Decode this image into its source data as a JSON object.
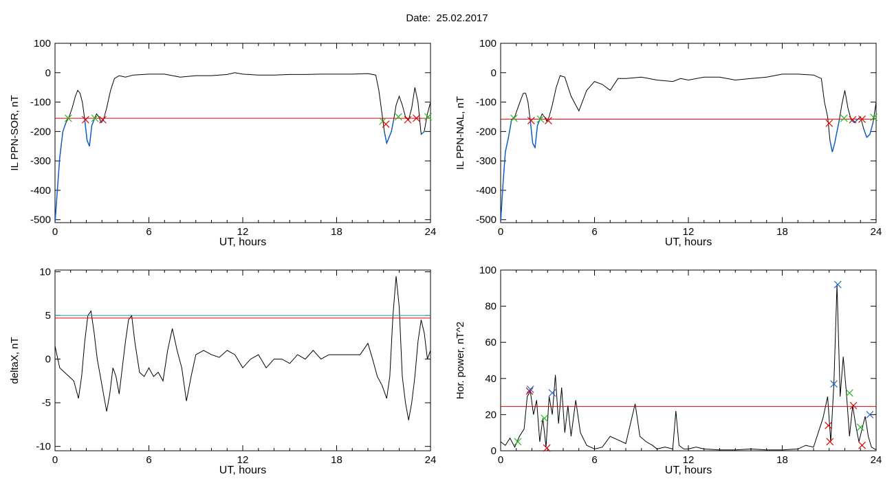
{
  "title": "Date:  25.02.2017",
  "colors": {
    "trace": "#000000",
    "threshold": "#e00000",
    "threshold2": "#2a8fc0",
    "segment": "#1060c8",
    "mark_red": "#e00000",
    "mark_green": "#22bb22",
    "mark_blue": "#2266cc"
  },
  "chart_data": [
    {
      "id": "ppn-sor",
      "type": "line",
      "xlabel": "UT, hours",
      "ylabel": "IL PPN-SOR, nT",
      "xlim": [
        0,
        24
      ],
      "ylim": [
        -510,
        100
      ],
      "xticks": [
        0,
        6,
        12,
        18,
        24
      ],
      "yticks": [
        -500,
        -400,
        -300,
        -200,
        -100,
        0,
        100
      ],
      "threshold": -155,
      "x": [
        0,
        0.15,
        0.3,
        0.5,
        0.7,
        0.9,
        1.1,
        1.3,
        1.45,
        1.6,
        1.75,
        1.9,
        2.05,
        2.2,
        2.35,
        2.5,
        2.65,
        2.8,
        2.95,
        3.1,
        3.3,
        3.55,
        3.8,
        4.1,
        4.5,
        5,
        6,
        7,
        8,
        9,
        10,
        11,
        11.5,
        12,
        13,
        14,
        15,
        16,
        17,
        18,
        19,
        20,
        20.5,
        20.7,
        20.9,
        21.05,
        21.2,
        21.35,
        21.5,
        21.65,
        21.8,
        22.0,
        22.2,
        22.4,
        22.6,
        22.8,
        23.0,
        23.2,
        23.4,
        23.6,
        23.8,
        24
      ],
      "y": [
        -510,
        -400,
        -290,
        -200,
        -170,
        -150,
        -120,
        -80,
        -60,
        -70,
        -100,
        -160,
        -230,
        -250,
        -180,
        -160,
        -140,
        -150,
        -170,
        -160,
        -120,
        -60,
        -20,
        -10,
        -15,
        -8,
        -5,
        -5,
        -15,
        -10,
        -10,
        -6,
        0,
        -5,
        -8,
        -8,
        -6,
        -6,
        -5,
        -5,
        -5,
        -3,
        -8,
        -60,
        -140,
        -200,
        -240,
        -220,
        -200,
        -160,
        -110,
        -80,
        -110,
        -150,
        -160,
        -120,
        -50,
        -100,
        -210,
        -200,
        -140,
        -100
      ],
      "markers": [
        {
          "x": 0.85,
          "y": -155,
          "color": "mark_green"
        },
        {
          "x": 1.95,
          "y": -160,
          "color": "mark_red"
        },
        {
          "x": 2.55,
          "y": -155,
          "color": "mark_green"
        },
        {
          "x": 3.05,
          "y": -160,
          "color": "mark_red"
        },
        {
          "x": 20.95,
          "y": -165,
          "color": "mark_green"
        },
        {
          "x": 21.15,
          "y": -175,
          "color": "mark_red"
        },
        {
          "x": 21.95,
          "y": -150,
          "color": "mark_green"
        },
        {
          "x": 22.55,
          "y": -160,
          "color": "mark_red"
        },
        {
          "x": 23.1,
          "y": -155,
          "color": "mark_red"
        },
        {
          "x": 23.85,
          "y": -150,
          "color": "mark_green"
        }
      ]
    },
    {
      "id": "ppn-nal",
      "type": "line",
      "xlabel": "UT, hours",
      "ylabel": "IL PPN-NAL, nT",
      "xlim": [
        0,
        24
      ],
      "ylim": [
        -510,
        100
      ],
      "xticks": [
        0,
        6,
        12,
        18,
        24
      ],
      "yticks": [
        -500,
        -400,
        -300,
        -200,
        -100,
        0,
        100
      ],
      "threshold": -158,
      "x": [
        0,
        0.15,
        0.3,
        0.5,
        0.7,
        0.9,
        1.1,
        1.3,
        1.45,
        1.6,
        1.75,
        1.9,
        2.05,
        2.2,
        2.35,
        2.5,
        2.65,
        2.8,
        2.95,
        3.1,
        3.3,
        3.55,
        3.8,
        4.1,
        4.5,
        5,
        5.5,
        6,
        6.5,
        7,
        7.5,
        8,
        9,
        10,
        11,
        11.5,
        12,
        13,
        14,
        15,
        16,
        17,
        18,
        19,
        20,
        20.5,
        20.7,
        20.9,
        21.05,
        21.2,
        21.35,
        21.5,
        21.65,
        21.8,
        22.0,
        22.2,
        22.4,
        22.6,
        22.8,
        23.0,
        23.2,
        23.4,
        23.6,
        23.8,
        24
      ],
      "y": [
        -510,
        -380,
        -270,
        -220,
        -160,
        -150,
        -120,
        -90,
        -70,
        -70,
        -100,
        -165,
        -240,
        -255,
        -180,
        -160,
        -140,
        -150,
        -165,
        -150,
        -110,
        -50,
        -10,
        -15,
        -80,
        -130,
        -60,
        -30,
        -40,
        -60,
        -20,
        -20,
        -15,
        -25,
        -30,
        -20,
        -25,
        -15,
        -15,
        -25,
        -20,
        -15,
        -5,
        -5,
        -8,
        -20,
        -100,
        -150,
        -230,
        -270,
        -240,
        -200,
        -160,
        -110,
        -60,
        -120,
        -160,
        -170,
        -160,
        -150,
        -190,
        -220,
        -210,
        -170,
        -100
      ],
      "markers": [
        {
          "x": 0.85,
          "y": -155,
          "color": "mark_green"
        },
        {
          "x": 1.95,
          "y": -163,
          "color": "mark_red"
        },
        {
          "x": 2.55,
          "y": -158,
          "color": "mark_green"
        },
        {
          "x": 3.05,
          "y": -163,
          "color": "mark_red"
        },
        {
          "x": 21.0,
          "y": -172,
          "color": "mark_red"
        },
        {
          "x": 21.95,
          "y": -155,
          "color": "mark_green"
        },
        {
          "x": 22.5,
          "y": -160,
          "color": "mark_red"
        },
        {
          "x": 23.1,
          "y": -158,
          "color": "mark_red"
        },
        {
          "x": 23.85,
          "y": -152,
          "color": "mark_green"
        }
      ]
    },
    {
      "id": "deltax",
      "type": "line",
      "xlabel": "UT, hours",
      "ylabel": "deltaX, nT",
      "xlim": [
        0,
        24
      ],
      "ylim": [
        -10.5,
        10.2
      ],
      "xticks": [
        0,
        6,
        12,
        18,
        24
      ],
      "yticks": [
        -10,
        -5,
        0,
        5,
        10
      ],
      "threshold": 4.7,
      "threshold2": 5.0,
      "x": [
        0,
        0.3,
        0.6,
        0.9,
        1.2,
        1.5,
        1.7,
        1.9,
        2.1,
        2.3,
        2.5,
        2.7,
        2.9,
        3.1,
        3.3,
        3.5,
        3.7,
        3.9,
        4.1,
        4.3,
        4.5,
        4.7,
        4.9,
        5.1,
        5.4,
        5.7,
        6.0,
        6.3,
        6.6,
        6.9,
        7.2,
        7.5,
        7.8,
        8.1,
        8.4,
        8.7,
        9.0,
        9.5,
        10,
        10.5,
        11,
        11.5,
        12,
        12.5,
        13,
        13.5,
        14,
        14.5,
        15,
        15.5,
        16,
        16.5,
        17,
        17.5,
        18,
        18.5,
        19,
        19.5,
        20,
        20.3,
        20.6,
        20.9,
        21.2,
        21.4,
        21.6,
        21.8,
        22.0,
        22.2,
        22.4,
        22.6,
        22.8,
        23.0,
        23.2,
        23.4,
        23.6,
        23.8,
        24
      ],
      "y": [
        1.5,
        -1,
        -1.5,
        -2,
        -2.5,
        -4.5,
        -2,
        2,
        5,
        5.5,
        3,
        0,
        -2,
        -4,
        -6,
        -4,
        -1,
        -2,
        -4,
        -1,
        2,
        4.5,
        5,
        2,
        -1.5,
        -2,
        -1,
        -2,
        -1.5,
        -2.5,
        1,
        3.5,
        1,
        -1,
        -4.8,
        -2,
        0.5,
        1,
        0.5,
        0.2,
        1,
        0.5,
        -1,
        0,
        0.5,
        -1,
        0,
        0,
        -0.5,
        0.5,
        0,
        1,
        0,
        0.5,
        0.5,
        0.5,
        0.5,
        0.5,
        1.8,
        0,
        -2,
        -3,
        -4.5,
        -2,
        5,
        9.5,
        6,
        -2,
        -5,
        -7,
        -5,
        -2,
        2,
        4.5,
        3,
        0,
        1
      ],
      "markers": []
    },
    {
      "id": "hor-power",
      "type": "line",
      "xlabel": "UT, hours",
      "ylabel": "Hor. power, nT^2",
      "xlim": [
        0,
        24
      ],
      "ylim": [
        0,
        100
      ],
      "xticks": [
        0,
        6,
        12,
        18,
        24
      ],
      "yticks": [
        0,
        20,
        40,
        60,
        80,
        100
      ],
      "threshold": 24.5,
      "x": [
        0,
        0.3,
        0.6,
        0.9,
        1.2,
        1.5,
        1.7,
        1.9,
        2.1,
        2.3,
        2.5,
        2.7,
        2.9,
        3.1,
        3.3,
        3.5,
        3.7,
        3.9,
        4.1,
        4.3,
        4.5,
        4.8,
        5.1,
        5.5,
        6,
        6.5,
        7,
        7.5,
        8,
        8.3,
        8.6,
        8.9,
        9.3,
        9.7,
        10,
        10.5,
        11,
        11.2,
        11.4,
        11.7,
        12,
        12.5,
        13,
        14,
        15,
        16,
        17,
        18,
        19,
        19.5,
        20,
        20.3,
        20.6,
        20.9,
        21.1,
        21.3,
        21.5,
        21.7,
        21.9,
        22.1,
        22.3,
        22.5,
        22.7,
        22.9,
        23.1,
        23.3,
        23.5,
        23.7,
        24
      ],
      "y": [
        5,
        3,
        7,
        2,
        8,
        12,
        30,
        33,
        20,
        28,
        5,
        18,
        2,
        30,
        20,
        42,
        15,
        35,
        10,
        25,
        8,
        28,
        10,
        3,
        1,
        2,
        8,
        6,
        4,
        15,
        26,
        8,
        5,
        3,
        1,
        2,
        1,
        22,
        3,
        1,
        1,
        2,
        1,
        0.5,
        0.5,
        1,
        0.5,
        0.5,
        1,
        3,
        2,
        10,
        18,
        30,
        5,
        37,
        92,
        30,
        52,
        32,
        8,
        25,
        14,
        5,
        12,
        19,
        8,
        2,
        0.5
      ],
      "markers": [
        {
          "x": 1.1,
          "y": 5,
          "color": "mark_green"
        },
        {
          "x": 1.85,
          "y": 33,
          "color": "mark_red"
        },
        {
          "x": 1.9,
          "y": 34,
          "color": "mark_blue"
        },
        {
          "x": 2.8,
          "y": 18,
          "color": "mark_green"
        },
        {
          "x": 2.95,
          "y": 1.5,
          "color": "mark_red"
        },
        {
          "x": 3.3,
          "y": 32,
          "color": "mark_blue"
        },
        {
          "x": 20.95,
          "y": 14,
          "color": "mark_red"
        },
        {
          "x": 21.05,
          "y": 5,
          "color": "mark_red"
        },
        {
          "x": 21.3,
          "y": 37,
          "color": "mark_blue"
        },
        {
          "x": 21.55,
          "y": 92,
          "color": "mark_blue"
        },
        {
          "x": 22.3,
          "y": 32,
          "color": "mark_green"
        },
        {
          "x": 22.55,
          "y": 25,
          "color": "mark_red"
        },
        {
          "x": 23.0,
          "y": 13,
          "color": "mark_green"
        },
        {
          "x": 23.1,
          "y": 3,
          "color": "mark_red"
        },
        {
          "x": 23.6,
          "y": 20,
          "color": "mark_blue"
        }
      ]
    }
  ]
}
